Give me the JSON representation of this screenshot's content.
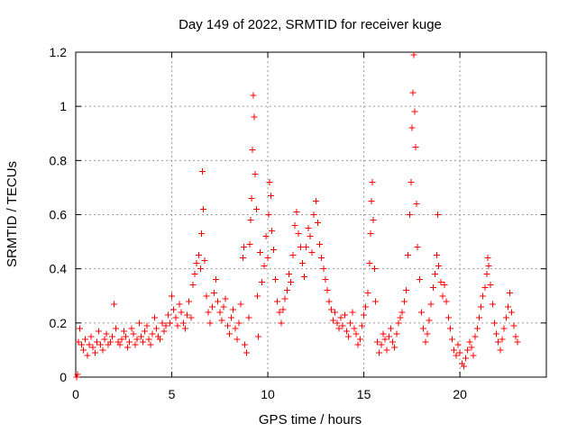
{
  "chart_data": {
    "type": "scatter",
    "title": "Day 149 of 2022, SRMTID for receiver kuge",
    "xlabel": "GPS time / hours",
    "ylabel": "SRMTID / TECUs",
    "xlim": [
      0,
      24.5
    ],
    "ylim": [
      0,
      1.2
    ],
    "x_ticks": [
      0,
      5,
      10,
      15,
      20
    ],
    "y_ticks": [
      0,
      0.2,
      0.4,
      0.6,
      0.8,
      1,
      1.2
    ],
    "x_tick_labels": [
      "0",
      "5",
      "10",
      "15",
      "20"
    ],
    "y_tick_labels": [
      "0",
      "0.2",
      "0.4",
      "0.6",
      "0.8",
      "1",
      "1.2"
    ],
    "grid": true,
    "series": [
      {
        "name": "SRMTID",
        "color": "#ff0000",
        "marker": "plus",
        "points": [
          [
            0.05,
            0.0
          ],
          [
            0.1,
            0.01
          ],
          [
            0.15,
            0.13
          ],
          [
            0.2,
            0.18
          ],
          [
            0.3,
            0.12
          ],
          [
            0.4,
            0.1
          ],
          [
            0.5,
            0.14
          ],
          [
            0.6,
            0.08
          ],
          [
            0.7,
            0.12
          ],
          [
            0.8,
            0.15
          ],
          [
            0.9,
            0.11
          ],
          [
            1.0,
            0.09
          ],
          [
            1.1,
            0.13
          ],
          [
            1.2,
            0.17
          ],
          [
            1.3,
            0.12
          ],
          [
            1.4,
            0.1
          ],
          [
            1.5,
            0.14
          ],
          [
            1.6,
            0.16
          ],
          [
            1.7,
            0.12
          ],
          [
            1.8,
            0.13
          ],
          [
            1.9,
            0.15
          ],
          [
            2.0,
            0.27
          ],
          [
            2.1,
            0.18
          ],
          [
            2.2,
            0.13
          ],
          [
            2.3,
            0.12
          ],
          [
            2.4,
            0.14
          ],
          [
            2.5,
            0.17
          ],
          [
            2.6,
            0.15
          ],
          [
            2.7,
            0.11
          ],
          [
            2.8,
            0.13
          ],
          [
            2.9,
            0.18
          ],
          [
            3.0,
            0.16
          ],
          [
            3.1,
            0.12
          ],
          [
            3.2,
            0.14
          ],
          [
            3.3,
            0.2
          ],
          [
            3.4,
            0.15
          ],
          [
            3.5,
            0.13
          ],
          [
            3.6,
            0.17
          ],
          [
            3.7,
            0.19
          ],
          [
            3.8,
            0.14
          ],
          [
            3.9,
            0.12
          ],
          [
            4.0,
            0.16
          ],
          [
            4.1,
            0.22
          ],
          [
            4.2,
            0.18
          ],
          [
            4.3,
            0.15
          ],
          [
            4.4,
            0.14
          ],
          [
            4.5,
            0.2
          ],
          [
            4.6,
            0.17
          ],
          [
            4.7,
            0.19
          ],
          [
            4.8,
            0.23
          ],
          [
            4.9,
            0.2
          ],
          [
            5.0,
            0.3
          ],
          [
            5.1,
            0.25
          ],
          [
            5.2,
            0.22
          ],
          [
            5.3,
            0.19
          ],
          [
            5.4,
            0.27
          ],
          [
            5.5,
            0.24
          ],
          [
            5.6,
            0.2
          ],
          [
            5.7,
            0.18
          ],
          [
            5.8,
            0.23
          ],
          [
            5.9,
            0.28
          ],
          [
            6.0,
            0.22
          ],
          [
            6.1,
            0.34
          ],
          [
            6.2,
            0.38
          ],
          [
            6.3,
            0.42
          ],
          [
            6.4,
            0.45
          ],
          [
            6.5,
            0.4
          ],
          [
            6.55,
            0.53
          ],
          [
            6.6,
            0.76
          ],
          [
            6.65,
            0.62
          ],
          [
            6.7,
            0.43
          ],
          [
            6.8,
            0.3
          ],
          [
            6.9,
            0.24
          ],
          [
            7.0,
            0.2
          ],
          [
            7.1,
            0.26
          ],
          [
            7.2,
            0.31
          ],
          [
            7.3,
            0.36
          ],
          [
            7.4,
            0.28
          ],
          [
            7.5,
            0.24
          ],
          [
            7.6,
            0.21
          ],
          [
            7.7,
            0.26
          ],
          [
            7.8,
            0.29
          ],
          [
            7.9,
            0.19
          ],
          [
            8.0,
            0.16
          ],
          [
            8.1,
            0.22
          ],
          [
            8.2,
            0.25
          ],
          [
            8.3,
            0.18
          ],
          [
            8.4,
            0.14
          ],
          [
            8.5,
            0.2
          ],
          [
            8.6,
            0.27
          ],
          [
            8.7,
            0.44
          ],
          [
            8.75,
            0.48
          ],
          [
            8.8,
            0.12
          ],
          [
            8.9,
            0.09
          ],
          [
            9.0,
            0.22
          ],
          [
            9.05,
            0.49
          ],
          [
            9.1,
            0.58
          ],
          [
            9.15,
            0.66
          ],
          [
            9.2,
            0.84
          ],
          [
            9.25,
            1.04
          ],
          [
            9.3,
            0.96
          ],
          [
            9.35,
            0.75
          ],
          [
            9.4,
            0.62
          ],
          [
            9.45,
            0.3
          ],
          [
            9.5,
            0.15
          ],
          [
            9.6,
            0.46
          ],
          [
            9.7,
            0.35
          ],
          [
            9.8,
            0.41
          ],
          [
            9.9,
            0.52
          ],
          [
            10.0,
            0.44
          ],
          [
            10.05,
            0.6
          ],
          [
            10.1,
            0.72
          ],
          [
            10.15,
            0.67
          ],
          [
            10.2,
            0.54
          ],
          [
            10.3,
            0.47
          ],
          [
            10.4,
            0.36
          ],
          [
            10.5,
            0.28
          ],
          [
            10.6,
            0.24
          ],
          [
            10.7,
            0.2
          ],
          [
            10.8,
            0.25
          ],
          [
            10.9,
            0.29
          ],
          [
            11.0,
            0.32
          ],
          [
            11.1,
            0.38
          ],
          [
            11.2,
            0.35
          ],
          [
            11.3,
            0.45
          ],
          [
            11.4,
            0.56
          ],
          [
            11.5,
            0.61
          ],
          [
            11.6,
            0.53
          ],
          [
            11.7,
            0.48
          ],
          [
            11.8,
            0.42
          ],
          [
            11.9,
            0.37
          ],
          [
            12.0,
            0.48
          ],
          [
            12.1,
            0.55
          ],
          [
            12.2,
            0.52
          ],
          [
            12.3,
            0.46
          ],
          [
            12.4,
            0.6
          ],
          [
            12.5,
            0.65
          ],
          [
            12.6,
            0.57
          ],
          [
            12.7,
            0.49
          ],
          [
            12.8,
            0.44
          ],
          [
            12.9,
            0.4
          ],
          [
            13.0,
            0.36
          ],
          [
            13.1,
            0.32
          ],
          [
            13.2,
            0.28
          ],
          [
            13.3,
            0.25
          ],
          [
            13.4,
            0.21
          ],
          [
            13.5,
            0.24
          ],
          [
            13.6,
            0.2
          ],
          [
            13.7,
            0.18
          ],
          [
            13.8,
            0.22
          ],
          [
            13.9,
            0.19
          ],
          [
            14.0,
            0.23
          ],
          [
            14.1,
            0.17
          ],
          [
            14.2,
            0.15
          ],
          [
            14.3,
            0.2
          ],
          [
            14.4,
            0.24
          ],
          [
            14.5,
            0.18
          ],
          [
            14.6,
            0.16
          ],
          [
            14.7,
            0.12
          ],
          [
            14.8,
            0.14
          ],
          [
            14.9,
            0.19
          ],
          [
            15.0,
            0.23
          ],
          [
            15.1,
            0.26
          ],
          [
            15.2,
            0.31
          ],
          [
            15.3,
            0.42
          ],
          [
            15.35,
            0.53
          ],
          [
            15.4,
            0.65
          ],
          [
            15.45,
            0.72
          ],
          [
            15.5,
            0.58
          ],
          [
            15.55,
            0.4
          ],
          [
            15.6,
            0.28
          ],
          [
            15.7,
            0.13
          ],
          [
            15.8,
            0.09
          ],
          [
            15.9,
            0.12
          ],
          [
            16.0,
            0.16
          ],
          [
            16.1,
            0.14
          ],
          [
            16.2,
            0.1
          ],
          [
            16.3,
            0.15
          ],
          [
            16.4,
            0.18
          ],
          [
            16.5,
            0.13
          ],
          [
            16.6,
            0.11
          ],
          [
            16.7,
            0.16
          ],
          [
            16.8,
            0.2
          ],
          [
            16.9,
            0.22
          ],
          [
            17.0,
            0.24
          ],
          [
            17.1,
            0.28
          ],
          [
            17.2,
            0.32
          ],
          [
            17.3,
            0.45
          ],
          [
            17.4,
            0.6
          ],
          [
            17.45,
            0.72
          ],
          [
            17.5,
            0.92
          ],
          [
            17.55,
            1.05
          ],
          [
            17.6,
            1.19
          ],
          [
            17.65,
            0.98
          ],
          [
            17.7,
            0.85
          ],
          [
            17.75,
            0.64
          ],
          [
            17.8,
            0.48
          ],
          [
            17.9,
            0.36
          ],
          [
            18.0,
            0.24
          ],
          [
            18.1,
            0.18
          ],
          [
            18.2,
            0.13
          ],
          [
            18.3,
            0.16
          ],
          [
            18.4,
            0.21
          ],
          [
            18.5,
            0.27
          ],
          [
            18.6,
            0.33
          ],
          [
            18.7,
            0.38
          ],
          [
            18.8,
            0.45
          ],
          [
            18.85,
            0.6
          ],
          [
            18.9,
            0.41
          ],
          [
            19.0,
            0.35
          ],
          [
            19.1,
            0.3
          ],
          [
            19.2,
            0.34
          ],
          [
            19.3,
            0.28
          ],
          [
            19.4,
            0.22
          ],
          [
            19.5,
            0.18
          ],
          [
            19.6,
            0.14
          ],
          [
            19.7,
            0.1
          ],
          [
            19.8,
            0.08
          ],
          [
            19.9,
            0.12
          ],
          [
            20.0,
            0.09
          ],
          [
            20.1,
            0.05
          ],
          [
            20.2,
            0.04
          ],
          [
            20.3,
            0.07
          ],
          [
            20.4,
            0.1
          ],
          [
            20.5,
            0.13
          ],
          [
            20.6,
            0.11
          ],
          [
            20.7,
            0.08
          ],
          [
            20.8,
            0.15
          ],
          [
            20.9,
            0.18
          ],
          [
            21.0,
            0.22
          ],
          [
            21.1,
            0.26
          ],
          [
            21.2,
            0.3
          ],
          [
            21.3,
            0.33
          ],
          [
            21.4,
            0.38
          ],
          [
            21.45,
            0.44
          ],
          [
            21.5,
            0.41
          ],
          [
            21.6,
            0.34
          ],
          [
            21.7,
            0.27
          ],
          [
            21.8,
            0.2
          ],
          [
            21.9,
            0.16
          ],
          [
            22.0,
            0.13
          ],
          [
            22.1,
            0.1
          ],
          [
            22.2,
            0.14
          ],
          [
            22.3,
            0.18
          ],
          [
            22.4,
            0.22
          ],
          [
            22.5,
            0.26
          ],
          [
            22.6,
            0.31
          ],
          [
            22.7,
            0.24
          ],
          [
            22.8,
            0.19
          ],
          [
            22.9,
            0.15
          ],
          [
            23.0,
            0.13
          ]
        ]
      }
    ]
  }
}
